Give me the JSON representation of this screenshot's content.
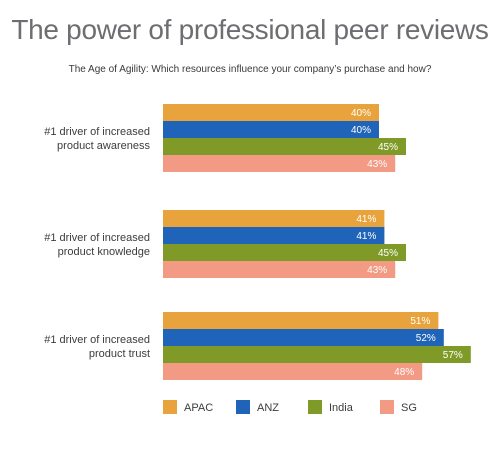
{
  "title": "The power of professional peer reviews",
  "subtitle": "The Age of Agility: Which resources influence your company’s purchase and how?",
  "chart_data": {
    "type": "bar",
    "orientation": "horizontal",
    "categories": [
      [
        "#1 driver of increased",
        "product awareness"
      ],
      [
        "#1 driver of increased",
        "product knowledge"
      ],
      [
        "#1 driver of increased",
        "product trust"
      ]
    ],
    "series": [
      {
        "name": "APAC",
        "color": "#e8a33d",
        "values": [
          40,
          41,
          51
        ],
        "labels": [
          "40%",
          "41%",
          "51%"
        ]
      },
      {
        "name": "ANZ",
        "color": "#1f64b8",
        "values": [
          40,
          41,
          52
        ],
        "labels": [
          "40%",
          "41%",
          "52%"
        ]
      },
      {
        "name": "India",
        "color": "#7f9a27",
        "values": [
          45,
          45,
          57
        ],
        "labels": [
          "45%",
          "45%",
          "57%"
        ]
      },
      {
        "name": "SG",
        "color": "#f29a83",
        "values": [
          43,
          43,
          48
        ],
        "labels": [
          "43%",
          "43%",
          "48%"
        ]
      }
    ],
    "xlim": [
      0,
      57
    ],
    "grid": false,
    "legend": "bottom"
  }
}
